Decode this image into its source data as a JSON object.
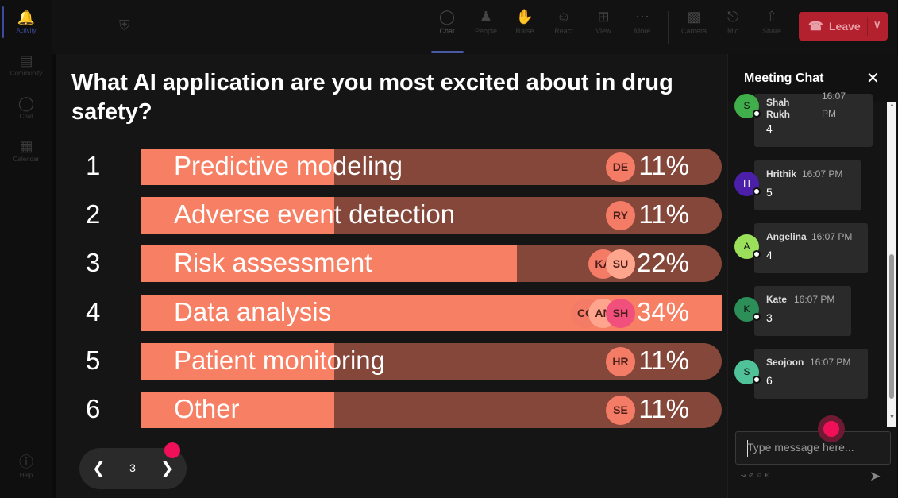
{
  "rail": {
    "items": [
      {
        "label": "Activity",
        "icon": "bell-icon"
      },
      {
        "label": "Community",
        "icon": "community-icon"
      },
      {
        "label": "Chat",
        "icon": "chat-icon"
      },
      {
        "label": "Calendar",
        "icon": "calendar-icon"
      },
      {
        "label": "Help",
        "icon": "help-icon"
      }
    ]
  },
  "toolbar": {
    "chat": "Chat",
    "people": "People",
    "raise": "Raise",
    "react": "React",
    "view": "View",
    "more": "More",
    "camera": "Camera",
    "mic": "Mic",
    "share": "Share",
    "leave": "Leave"
  },
  "poll": {
    "question": "What AI application are you most excited about in drug safety?",
    "options": [
      {
        "rank": "1",
        "label": "Predictive modeling",
        "percent": "11%",
        "fraction": 0.11,
        "avatars": [
          "DE"
        ]
      },
      {
        "rank": "2",
        "label": "Adverse event detection",
        "percent": "11%",
        "fraction": 0.11,
        "avatars": [
          "RY"
        ]
      },
      {
        "rank": "3",
        "label": "Risk assessment",
        "percent": "22%",
        "fraction": 0.22,
        "avatars": [
          "KA",
          "SU"
        ]
      },
      {
        "rank": "4",
        "label": "Data analysis",
        "percent": "34%",
        "fraction": 0.34,
        "avatars": [
          "CO",
          "AN",
          "SH"
        ]
      },
      {
        "rank": "5",
        "label": "Patient monitoring",
        "percent": "11%",
        "fraction": 0.11,
        "avatars": [
          "HR"
        ]
      },
      {
        "rank": "6",
        "label": "Other",
        "percent": "11%",
        "fraction": 0.11,
        "avatars": [
          "SE"
        ]
      }
    ],
    "page": "3"
  },
  "chat": {
    "title": "Meeting Chat",
    "messages": [
      {
        "initial": "S",
        "name": "Shah Rukh",
        "time": "16:07 PM",
        "text": "4",
        "color": "#3fae4b"
      },
      {
        "initial": "H",
        "name": "Hrithik",
        "time": "16:07 PM",
        "text": "5",
        "color": "#4b1fa8"
      },
      {
        "initial": "A",
        "name": "Angelina",
        "time": "16:07 PM",
        "text": "4",
        "color": "#9be05a"
      },
      {
        "initial": "K",
        "name": "Kate",
        "time": "16:07 PM",
        "text": "3",
        "color": "#2b8f57"
      },
      {
        "initial": "S",
        "name": "Seojoon",
        "time": "16:07 PM",
        "text": "6",
        "color": "#4fc29a"
      }
    ],
    "placeholder": "Type message here..."
  }
}
